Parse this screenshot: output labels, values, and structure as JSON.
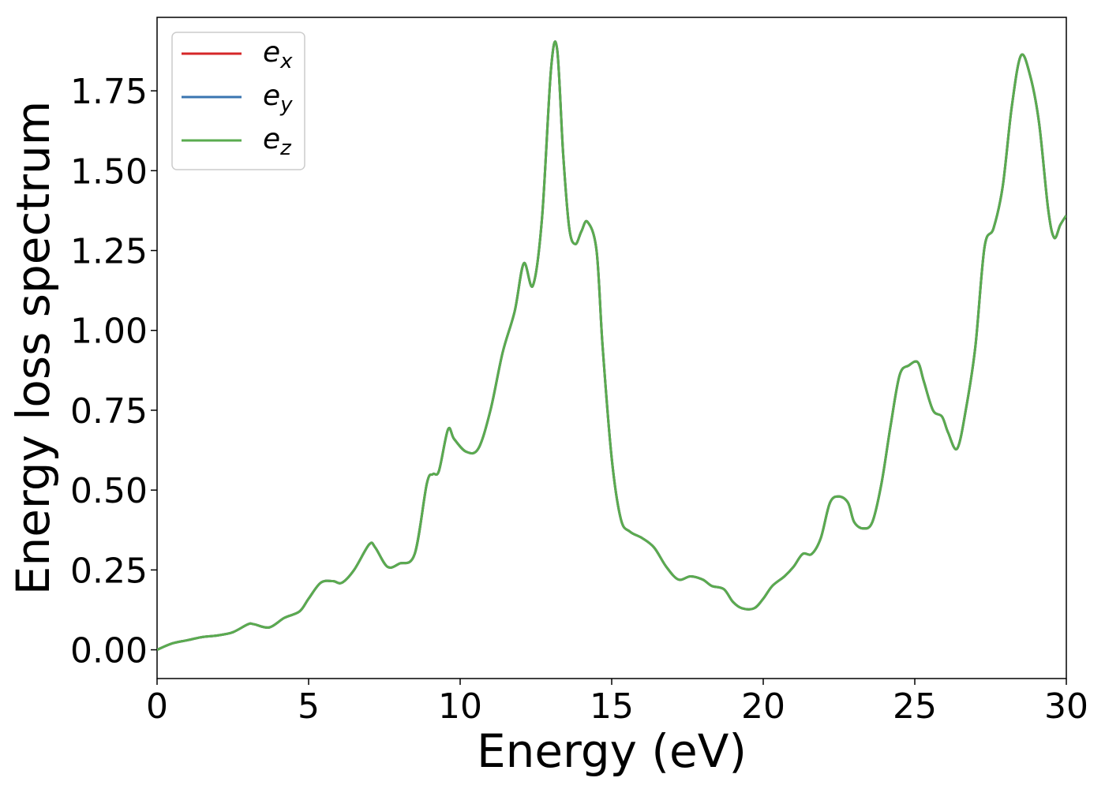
{
  "chart_data": {
    "type": "line",
    "title": "",
    "xlabel": "Energy (eV)",
    "ylabel": "Energy loss spectrum",
    "xlim": [
      0,
      30
    ],
    "ylim": [
      -0.09,
      1.98
    ],
    "xticks": [
      0,
      5,
      10,
      15,
      20,
      25,
      30
    ],
    "xtick_labels": [
      "0",
      "5",
      "10",
      "15",
      "20",
      "25",
      "30"
    ],
    "yticks": [
      0.0,
      0.25,
      0.5,
      0.75,
      1.0,
      1.25,
      1.5,
      1.75
    ],
    "ytick_labels": [
      "0.00",
      "0.25",
      "0.50",
      "0.75",
      "1.00",
      "1.25",
      "1.50",
      "1.75"
    ],
    "grid": false,
    "legend_position": "top-left",
    "series": [
      {
        "name": "e_x",
        "label_base": "e",
        "label_sub": "x",
        "color": "#d62728",
        "x": [
          0,
          0.5,
          1,
          1.5,
          2,
          2.5,
          3,
          3.2,
          3.7,
          4.2,
          4.7,
          5.0,
          5.4,
          5.8,
          6.1,
          6.5,
          7.0,
          7.2,
          7.6,
          8.0,
          8.5,
          8.9,
          9.1,
          9.3,
          9.6,
          9.8,
          10.2,
          10.6,
          11.0,
          11.4,
          11.8,
          12.1,
          12.4,
          12.7,
          13.0,
          13.2,
          13.4,
          13.6,
          13.8,
          14.0,
          14.2,
          14.5,
          14.7,
          15.0,
          15.3,
          15.6,
          16.0,
          16.4,
          16.8,
          17.2,
          17.6,
          18.0,
          18.3,
          18.7,
          19.0,
          19.3,
          19.7,
          20.0,
          20.3,
          20.7,
          21.0,
          21.3,
          21.6,
          21.9,
          22.2,
          22.5,
          22.8,
          23.0,
          23.3,
          23.6,
          23.9,
          24.2,
          24.5,
          24.8,
          25.1,
          25.3,
          25.6,
          25.9,
          26.1,
          26.4,
          26.7,
          27.0,
          27.3,
          27.6,
          27.9,
          28.2,
          28.5,
          28.8,
          29.1,
          29.4,
          29.6,
          29.8,
          30.0
        ],
        "y": [
          0.0,
          0.02,
          0.03,
          0.04,
          0.045,
          0.055,
          0.08,
          0.08,
          0.07,
          0.1,
          0.12,
          0.16,
          0.21,
          0.215,
          0.21,
          0.25,
          0.33,
          0.32,
          0.26,
          0.27,
          0.3,
          0.52,
          0.55,
          0.56,
          0.69,
          0.66,
          0.62,
          0.63,
          0.75,
          0.93,
          1.06,
          1.21,
          1.14,
          1.35,
          1.82,
          1.88,
          1.55,
          1.32,
          1.27,
          1.31,
          1.34,
          1.25,
          0.95,
          0.6,
          0.41,
          0.37,
          0.35,
          0.32,
          0.26,
          0.22,
          0.23,
          0.22,
          0.2,
          0.19,
          0.15,
          0.13,
          0.13,
          0.16,
          0.2,
          0.23,
          0.26,
          0.3,
          0.3,
          0.35,
          0.46,
          0.48,
          0.46,
          0.4,
          0.38,
          0.4,
          0.52,
          0.7,
          0.86,
          0.89,
          0.9,
          0.84,
          0.75,
          0.73,
          0.68,
          0.63,
          0.76,
          0.95,
          1.26,
          1.32,
          1.45,
          1.7,
          1.86,
          1.8,
          1.65,
          1.38,
          1.29,
          1.33,
          1.36
        ]
      },
      {
        "name": "e_y",
        "label_base": "e",
        "label_sub": "y",
        "color": "#3a75b0",
        "x": [
          0,
          0.5,
          1,
          1.5,
          2,
          2.5,
          3,
          3.2,
          3.7,
          4.2,
          4.7,
          5.0,
          5.4,
          5.8,
          6.1,
          6.5,
          7.0,
          7.2,
          7.6,
          8.0,
          8.5,
          8.9,
          9.1,
          9.3,
          9.6,
          9.8,
          10.2,
          10.6,
          11.0,
          11.4,
          11.8,
          12.1,
          12.4,
          12.7,
          13.0,
          13.2,
          13.4,
          13.6,
          13.8,
          14.0,
          14.2,
          14.5,
          14.7,
          15.0,
          15.3,
          15.6,
          16.0,
          16.4,
          16.8,
          17.2,
          17.6,
          18.0,
          18.3,
          18.7,
          19.0,
          19.3,
          19.7,
          20.0,
          20.3,
          20.7,
          21.0,
          21.3,
          21.6,
          21.9,
          22.2,
          22.5,
          22.8,
          23.0,
          23.3,
          23.6,
          23.9,
          24.2,
          24.5,
          24.8,
          25.1,
          25.3,
          25.6,
          25.9,
          26.1,
          26.4,
          26.7,
          27.0,
          27.3,
          27.6,
          27.9,
          28.2,
          28.5,
          28.8,
          29.1,
          29.4,
          29.6,
          29.8,
          30.0
        ],
        "y": [
          0.0,
          0.02,
          0.03,
          0.04,
          0.045,
          0.055,
          0.08,
          0.08,
          0.07,
          0.1,
          0.12,
          0.16,
          0.21,
          0.215,
          0.21,
          0.25,
          0.33,
          0.32,
          0.26,
          0.27,
          0.3,
          0.52,
          0.55,
          0.56,
          0.69,
          0.66,
          0.62,
          0.63,
          0.75,
          0.93,
          1.06,
          1.21,
          1.14,
          1.35,
          1.82,
          1.88,
          1.55,
          1.32,
          1.27,
          1.31,
          1.34,
          1.25,
          0.95,
          0.6,
          0.41,
          0.37,
          0.35,
          0.32,
          0.26,
          0.22,
          0.23,
          0.22,
          0.2,
          0.19,
          0.15,
          0.13,
          0.13,
          0.16,
          0.2,
          0.23,
          0.26,
          0.3,
          0.3,
          0.35,
          0.46,
          0.48,
          0.46,
          0.4,
          0.38,
          0.4,
          0.52,
          0.7,
          0.86,
          0.89,
          0.9,
          0.84,
          0.75,
          0.73,
          0.68,
          0.63,
          0.76,
          0.95,
          1.26,
          1.32,
          1.45,
          1.7,
          1.86,
          1.8,
          1.65,
          1.38,
          1.29,
          1.33,
          1.36
        ]
      },
      {
        "name": "e_z",
        "label_base": "e",
        "label_sub": "z",
        "color": "#5aab4f",
        "x": [
          0,
          0.5,
          1,
          1.5,
          2,
          2.5,
          3,
          3.2,
          3.7,
          4.2,
          4.7,
          5.0,
          5.4,
          5.8,
          6.1,
          6.5,
          7.0,
          7.2,
          7.6,
          8.0,
          8.5,
          8.9,
          9.1,
          9.3,
          9.6,
          9.8,
          10.2,
          10.6,
          11.0,
          11.4,
          11.8,
          12.1,
          12.4,
          12.7,
          13.0,
          13.2,
          13.4,
          13.6,
          13.8,
          14.0,
          14.2,
          14.5,
          14.7,
          15.0,
          15.3,
          15.6,
          16.0,
          16.4,
          16.8,
          17.2,
          17.6,
          18.0,
          18.3,
          18.7,
          19.0,
          19.3,
          19.7,
          20.0,
          20.3,
          20.7,
          21.0,
          21.3,
          21.6,
          21.9,
          22.2,
          22.5,
          22.8,
          23.0,
          23.3,
          23.6,
          23.9,
          24.2,
          24.5,
          24.8,
          25.1,
          25.3,
          25.6,
          25.9,
          26.1,
          26.4,
          26.7,
          27.0,
          27.3,
          27.6,
          27.9,
          28.2,
          28.5,
          28.8,
          29.1,
          29.4,
          29.6,
          29.8,
          30.0
        ],
        "y": [
          0.0,
          0.02,
          0.03,
          0.04,
          0.045,
          0.055,
          0.08,
          0.08,
          0.07,
          0.1,
          0.12,
          0.16,
          0.21,
          0.215,
          0.21,
          0.25,
          0.33,
          0.32,
          0.26,
          0.27,
          0.3,
          0.52,
          0.55,
          0.56,
          0.69,
          0.66,
          0.62,
          0.63,
          0.75,
          0.93,
          1.06,
          1.21,
          1.14,
          1.35,
          1.82,
          1.88,
          1.55,
          1.32,
          1.27,
          1.31,
          1.34,
          1.25,
          0.95,
          0.6,
          0.41,
          0.37,
          0.35,
          0.32,
          0.26,
          0.22,
          0.23,
          0.22,
          0.2,
          0.19,
          0.15,
          0.13,
          0.13,
          0.16,
          0.2,
          0.23,
          0.26,
          0.3,
          0.3,
          0.35,
          0.46,
          0.48,
          0.46,
          0.4,
          0.38,
          0.4,
          0.52,
          0.7,
          0.86,
          0.89,
          0.9,
          0.84,
          0.75,
          0.73,
          0.68,
          0.63,
          0.76,
          0.95,
          1.26,
          1.32,
          1.45,
          1.7,
          1.86,
          1.8,
          1.65,
          1.38,
          1.29,
          1.33,
          1.36
        ]
      }
    ]
  }
}
